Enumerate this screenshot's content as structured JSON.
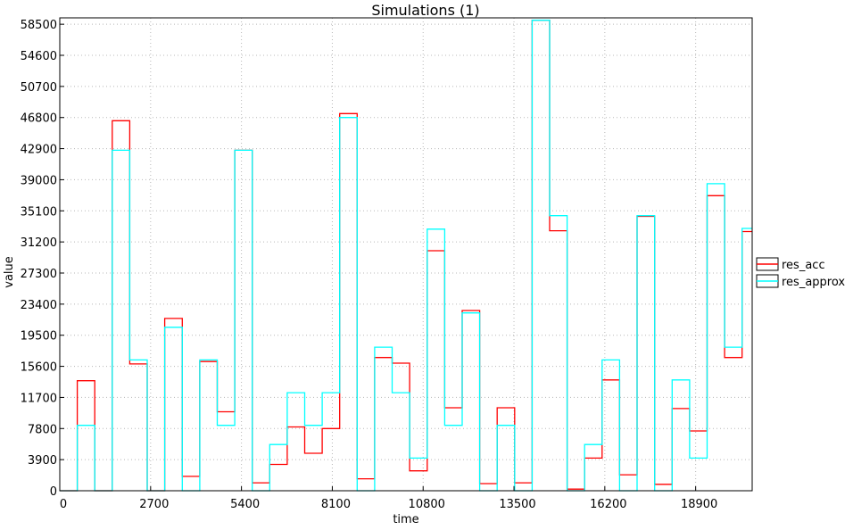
{
  "chart_data": {
    "type": "line",
    "title": "Simulations (1)",
    "xlabel": "time",
    "ylabel": "value",
    "xlim": [
      0,
      20580
    ],
    "ylim": [
      0,
      59300
    ],
    "x_ticks": [
      "0",
      "2700",
      "5400",
      "8100",
      "10800",
      "13500",
      "16200",
      "18900"
    ],
    "x_tick_values": [
      0,
      2700,
      5400,
      8100,
      10800,
      13500,
      16200,
      18900
    ],
    "y_ticks": [
      "0",
      "3900",
      "7800",
      "11700",
      "15600",
      "19500",
      "23400",
      "27300",
      "31200",
      "35100",
      "39000",
      "42900",
      "46800",
      "50700",
      "54600",
      "58500"
    ],
    "y_tick_values": [
      0,
      3900,
      7800,
      11700,
      15600,
      19500,
      23400,
      27300,
      31200,
      35100,
      39000,
      42900,
      46800,
      50700,
      54600,
      58500
    ],
    "grid": true,
    "legend_position": "right",
    "step_style": "post",
    "x": [
      0,
      520,
      1040,
      1560,
      2080,
      2600,
      3120,
      3640,
      4160,
      4680,
      5200,
      5720,
      6240,
      6760,
      7280,
      7800,
      8320,
      8840,
      9360,
      9880,
      10400,
      10920,
      11440,
      11960,
      12480,
      13000,
      13520,
      14040,
      14560,
      15080,
      15600,
      16120,
      16640,
      17160,
      17680,
      18200,
      18720,
      19240,
      19760,
      20280,
      20580
    ],
    "series": [
      {
        "name": "res_acc",
        "color": "#ff0000",
        "values": [
          0,
          13800,
          0,
          46400,
          15900,
          0,
          21600,
          1800,
          16200,
          9900,
          42700,
          1000,
          3300,
          8000,
          4700,
          7800,
          47300,
          1500,
          16700,
          16000,
          2500,
          30100,
          10400,
          22600,
          900,
          10400,
          1000,
          59000,
          32600,
          200,
          4100,
          13900,
          2000,
          34400,
          800,
          10300,
          7500,
          37000,
          16700,
          32500,
          32500
        ]
      },
      {
        "name": "res_approx",
        "color": "#00ffff",
        "values": [
          0,
          8200,
          0,
          42700,
          16400,
          0,
          20500,
          0,
          16400,
          8200,
          42700,
          0,
          5800,
          12300,
          8200,
          12300,
          46800,
          0,
          18000,
          12300,
          4100,
          32800,
          8200,
          22300,
          0,
          8200,
          0,
          59000,
          34500,
          0,
          5800,
          16400,
          0,
          34500,
          0,
          13900,
          4100,
          38500,
          18000,
          32900,
          32900
        ]
      }
    ]
  }
}
